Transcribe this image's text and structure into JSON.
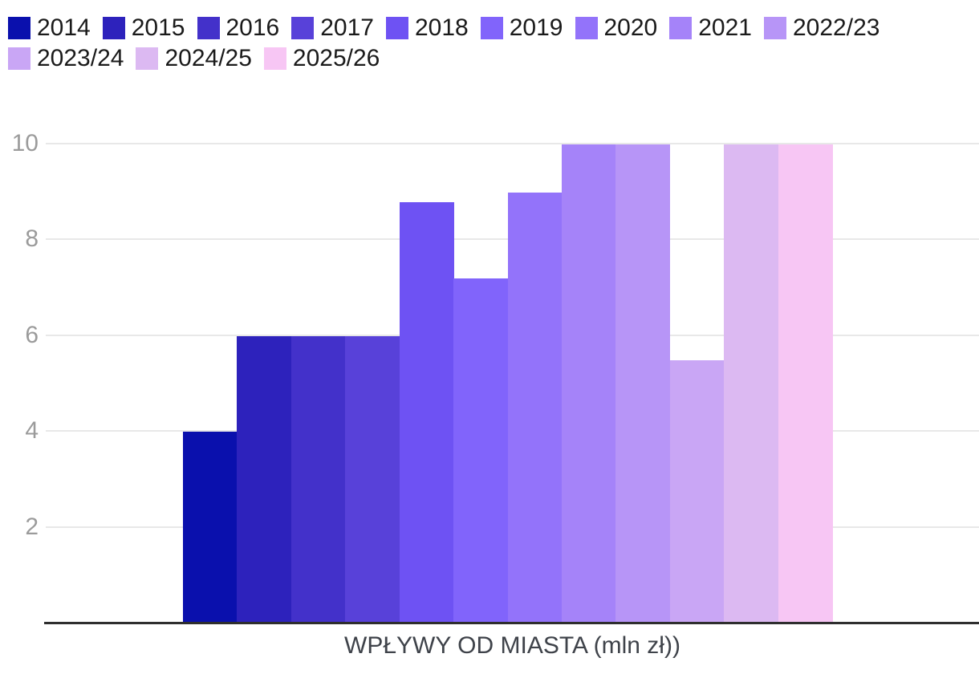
{
  "page": {
    "background": "#ffffff"
  },
  "legend": {
    "items": [
      {
        "label": "2014",
        "color": "#0a10ad"
      },
      {
        "label": "2015",
        "color": "#2d22bc"
      },
      {
        "label": "2016",
        "color": "#4331ca"
      },
      {
        "label": "2017",
        "color": "#5841d9"
      },
      {
        "label": "2018",
        "color": "#6e52f3"
      },
      {
        "label": "2019",
        "color": "#8164fb"
      },
      {
        "label": "2020",
        "color": "#9373fa"
      },
      {
        "label": "2021",
        "color": "#a583f9"
      },
      {
        "label": "2022/23",
        "color": "#b795f7"
      },
      {
        "label": "2023/24",
        "color": "#c9a6f5"
      },
      {
        "label": "2024/25",
        "color": "#dcb9f2"
      },
      {
        "label": "2025/26",
        "color": "#f7c6f4"
      }
    ]
  },
  "chart_data": {
    "type": "bar",
    "title": "",
    "xlabel": "WPŁYWY OD MIASTA (mln zł))",
    "ylabel": "",
    "categories": [
      "2014",
      "2015",
      "2016",
      "2017",
      "2018",
      "2019",
      "2020",
      "2021",
      "2022/23",
      "2023/24",
      "2024/25",
      "2025/26"
    ],
    "values": [
      4,
      6,
      6,
      6,
      8.8,
      7.2,
      9,
      10,
      10,
      5.5,
      10,
      10
    ],
    "colors": [
      "#0a10ad",
      "#2d22bc",
      "#4331ca",
      "#5841d9",
      "#6e52f3",
      "#8164fb",
      "#9373fa",
      "#a583f9",
      "#b795f7",
      "#c9a6f5",
      "#dcb9f2",
      "#f7c6f4"
    ],
    "ylim": [
      0,
      10
    ],
    "yticks": [
      2,
      4,
      6,
      8,
      10
    ],
    "grid": true,
    "legend_position": "top-left"
  },
  "style": {
    "grid_color": "#e8e8e8",
    "axis_line_color": "#2e2e2e",
    "tick_label_color": "#9b9b9b",
    "legend_text_color": "#1a1a1a",
    "axis_title_color": "#3f434a"
  }
}
